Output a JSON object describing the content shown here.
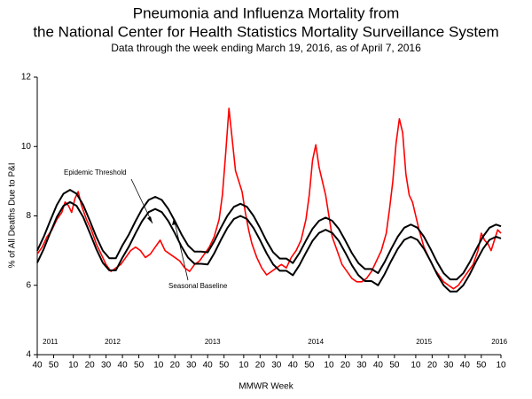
{
  "chart_data": {
    "type": "line",
    "title": "Pneumonia and Influenza Mortality from",
    "title_line2": "the National Center for Health Statistics Mortality Surveillance System",
    "subtitle": "Data through the week ending March 19, 2016, as of April 7, 2016",
    "x_label": "MMWR Week",
    "y_label": "% of All Deaths Due to P&I",
    "xlim": [
      0,
      283
    ],
    "ylim": [
      4,
      12
    ],
    "yticks": [
      4,
      6,
      8,
      10,
      12
    ],
    "xticks": [
      {
        "value": 0,
        "label": "40"
      },
      {
        "value": 10,
        "label": "50"
      },
      {
        "value": 22,
        "label": "10"
      },
      {
        "value": 32,
        "label": "20"
      },
      {
        "value": 42,
        "label": "30"
      },
      {
        "value": 52,
        "label": "40"
      },
      {
        "value": 62,
        "label": "50"
      },
      {
        "value": 74,
        "label": "10"
      },
      {
        "value": 84,
        "label": "20"
      },
      {
        "value": 94,
        "label": "30"
      },
      {
        "value": 104,
        "label": "40"
      },
      {
        "value": 114,
        "label": "50"
      },
      {
        "value": 126,
        "label": "10"
      },
      {
        "value": 136,
        "label": "20"
      },
      {
        "value": 146,
        "label": "30"
      },
      {
        "value": 156,
        "label": "40"
      },
      {
        "value": 166,
        "label": "50"
      },
      {
        "value": 178,
        "label": "10"
      },
      {
        "value": 188,
        "label": "20"
      },
      {
        "value": 198,
        "label": "30"
      },
      {
        "value": 208,
        "label": "40"
      },
      {
        "value": 218,
        "label": "50"
      },
      {
        "value": 231,
        "label": "10"
      },
      {
        "value": 241,
        "label": "20"
      },
      {
        "value": 251,
        "label": "30"
      },
      {
        "value": 261,
        "label": "40"
      },
      {
        "value": 271,
        "label": "50"
      },
      {
        "value": 283,
        "label": "10"
      }
    ],
    "year_labels": [
      {
        "x": 8,
        "label": "2011"
      },
      {
        "x": 46,
        "label": "2012"
      },
      {
        "x": 107,
        "label": "2013"
      },
      {
        "x": 170,
        "label": "2014"
      },
      {
        "x": 236,
        "label": "2015"
      },
      {
        "x": 282,
        "label": "2016"
      }
    ],
    "series": [
      {
        "color": "#ff0000",
        "x": [
          0,
          3,
          6,
          9,
          12,
          15,
          17,
          19,
          21,
          23,
          25,
          27,
          30,
          33,
          36,
          39,
          42,
          45,
          48,
          51,
          54,
          57,
          60,
          63,
          66,
          69,
          72,
          75,
          78,
          81,
          84,
          87,
          90,
          93,
          96,
          99,
          102,
          105,
          108,
          111,
          113,
          115,
          117,
          119,
          121,
          123,
          125,
          127,
          129,
          131,
          134,
          137,
          140,
          143,
          146,
          149,
          152,
          155,
          158,
          161,
          164,
          166,
          168,
          170,
          172,
          174,
          176,
          178,
          180,
          183,
          186,
          189,
          192,
          195,
          198,
          201,
          204,
          207,
          210,
          213,
          215,
          217,
          219,
          221,
          223,
          225,
          227,
          229,
          231,
          233,
          236,
          239,
          242,
          245,
          248,
          251,
          254,
          257,
          260,
          263,
          266,
          269,
          271,
          273,
          275,
          277,
          279,
          281,
          283
        ],
        "values": [
          6.9,
          7.1,
          7.4,
          7.6,
          7.9,
          8.1,
          8.4,
          8.3,
          8.1,
          8.5,
          8.7,
          8.3,
          7.9,
          7.6,
          7.2,
          6.9,
          6.6,
          6.4,
          6.5,
          6.6,
          6.8,
          7.0,
          7.1,
          7.0,
          6.8,
          6.9,
          7.1,
          7.3,
          7.0,
          6.9,
          6.8,
          6.7,
          6.5,
          6.4,
          6.6,
          6.7,
          6.9,
          7.1,
          7.4,
          7.9,
          8.6,
          9.8,
          11.1,
          10.2,
          9.3,
          9.0,
          8.7,
          8.1,
          7.6,
          7.2,
          6.8,
          6.5,
          6.3,
          6.4,
          6.5,
          6.6,
          6.5,
          6.8,
          7.0,
          7.3,
          7.9,
          8.6,
          9.6,
          10.05,
          9.4,
          9.0,
          8.6,
          8.0,
          7.4,
          7.0,
          6.6,
          6.4,
          6.2,
          6.1,
          6.1,
          6.2,
          6.4,
          6.7,
          7.0,
          7.5,
          8.2,
          9.0,
          10.1,
          10.8,
          10.4,
          9.2,
          8.6,
          8.4,
          8.0,
          7.6,
          7.1,
          6.8,
          6.5,
          6.3,
          6.1,
          6.0,
          5.9,
          6.0,
          6.2,
          6.4,
          6.6,
          7.0,
          7.5,
          7.3,
          7.2,
          7.0,
          7.3,
          7.6,
          7.5
        ]
      },
      {
        "name": "Seasonal Baseline",
        "color": "#000000",
        "x": [
          0,
          4,
          8,
          12,
          16,
          20,
          24,
          28,
          32,
          36,
          40,
          44,
          48,
          52,
          56,
          60,
          64,
          68,
          72,
          76,
          80,
          84,
          88,
          92,
          96,
          100,
          104,
          108,
          112,
          116,
          120,
          124,
          128,
          132,
          136,
          140,
          144,
          148,
          152,
          156,
          160,
          164,
          168,
          172,
          176,
          180,
          184,
          188,
          192,
          196,
          200,
          204,
          208,
          212,
          216,
          220,
          224,
          228,
          232,
          236,
          240,
          244,
          248,
          252,
          256,
          260,
          264,
          268,
          272,
          276,
          280,
          283
        ],
        "values": [
          6.65,
          7.05,
          7.52,
          7.97,
          8.29,
          8.4,
          8.29,
          7.97,
          7.52,
          7.05,
          6.65,
          6.43,
          6.43,
          6.8,
          7.12,
          7.5,
          7.85,
          8.11,
          8.2,
          8.11,
          7.85,
          7.5,
          7.12,
          6.8,
          6.62,
          6.62,
          6.6,
          6.92,
          7.3,
          7.65,
          7.91,
          8.0,
          7.91,
          7.65,
          7.3,
          6.92,
          6.6,
          6.42,
          6.42,
          6.29,
          6.58,
          6.94,
          7.28,
          7.51,
          7.6,
          7.51,
          7.28,
          6.94,
          6.58,
          6.29,
          6.12,
          6.12,
          6.0,
          6.32,
          6.7,
          7.05,
          7.31,
          7.4,
          7.31,
          7.05,
          6.7,
          6.32,
          6.0,
          5.82,
          5.82,
          6.0,
          6.32,
          6.7,
          7.05,
          7.31,
          7.4,
          7.35
        ]
      },
      {
        "name": "Epidemic Threshold",
        "color": "#000000",
        "x": [
          0,
          4,
          8,
          12,
          16,
          20,
          24,
          28,
          32,
          36,
          40,
          44,
          48,
          52,
          56,
          60,
          64,
          68,
          72,
          76,
          80,
          84,
          88,
          92,
          96,
          100,
          104,
          108,
          112,
          116,
          120,
          124,
          128,
          132,
          136,
          140,
          144,
          148,
          152,
          156,
          160,
          164,
          168,
          172,
          176,
          180,
          184,
          188,
          192,
          196,
          200,
          204,
          208,
          212,
          216,
          220,
          224,
          228,
          232,
          236,
          240,
          244,
          248,
          252,
          256,
          260,
          264,
          268,
          272,
          276,
          280,
          283
        ],
        "values": [
          7.0,
          7.4,
          7.87,
          8.32,
          8.64,
          8.75,
          8.64,
          8.32,
          7.87,
          7.4,
          7.0,
          6.78,
          6.78,
          7.15,
          7.47,
          7.85,
          8.2,
          8.46,
          8.55,
          8.46,
          8.2,
          7.85,
          7.47,
          7.15,
          6.97,
          6.97,
          6.95,
          7.27,
          7.65,
          8.0,
          8.26,
          8.35,
          8.26,
          8.0,
          7.65,
          7.27,
          6.95,
          6.77,
          6.77,
          6.64,
          6.93,
          7.29,
          7.63,
          7.86,
          7.95,
          7.86,
          7.63,
          7.29,
          6.93,
          6.64,
          6.47,
          6.47,
          6.35,
          6.67,
          7.05,
          7.4,
          7.66,
          7.75,
          7.66,
          7.4,
          7.05,
          6.67,
          6.35,
          6.17,
          6.17,
          6.35,
          6.67,
          7.05,
          7.4,
          7.66,
          7.75,
          7.7
        ]
      }
    ]
  }
}
